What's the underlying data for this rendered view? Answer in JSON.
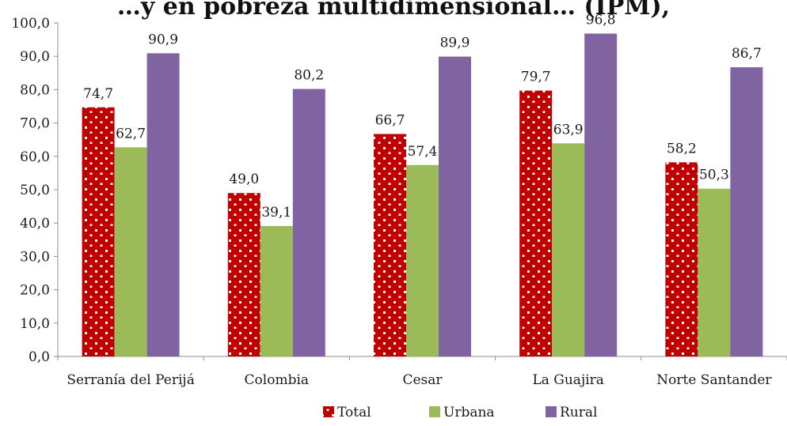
{
  "chart_data": {
    "type": "bar",
    "title": "…y en pobreza multidimensional… (IPM),",
    "xlabel": "",
    "ylabel": "",
    "ylim": [
      0,
      100
    ],
    "yticks": [
      "0,0",
      "10,0",
      "20,0",
      "30,0",
      "40,0",
      "50,0",
      "60,0",
      "70,0",
      "80,0",
      "90,0",
      "100,0"
    ],
    "categories": [
      "Serranía del Perijá",
      "Colombia",
      "Cesar",
      "La Guajira",
      "Norte Santander"
    ],
    "series": [
      {
        "name": "Total",
        "color": "#c00000",
        "pattern": "dotted",
        "values": [
          74.7,
          49.0,
          66.7,
          79.7,
          58.2
        ],
        "labels": [
          "74,7",
          "49,0",
          "66,7",
          "79,7",
          "58,2"
        ]
      },
      {
        "name": "Urbana",
        "color": "#9bbb59",
        "values": [
          62.7,
          39.1,
          57.4,
          63.9,
          50.3
        ],
        "labels": [
          "62,7",
          "39,1",
          "57,4",
          "63,9",
          "50,3"
        ]
      },
      {
        "name": "Rural",
        "color": "#8064a2",
        "values": [
          90.9,
          80.2,
          89.9,
          96.8,
          86.7
        ],
        "labels": [
          "90,9",
          "80,2",
          "89,9",
          "96,8",
          "86,7"
        ]
      }
    ],
    "grid": false,
    "legend_position": "bottom-center"
  }
}
